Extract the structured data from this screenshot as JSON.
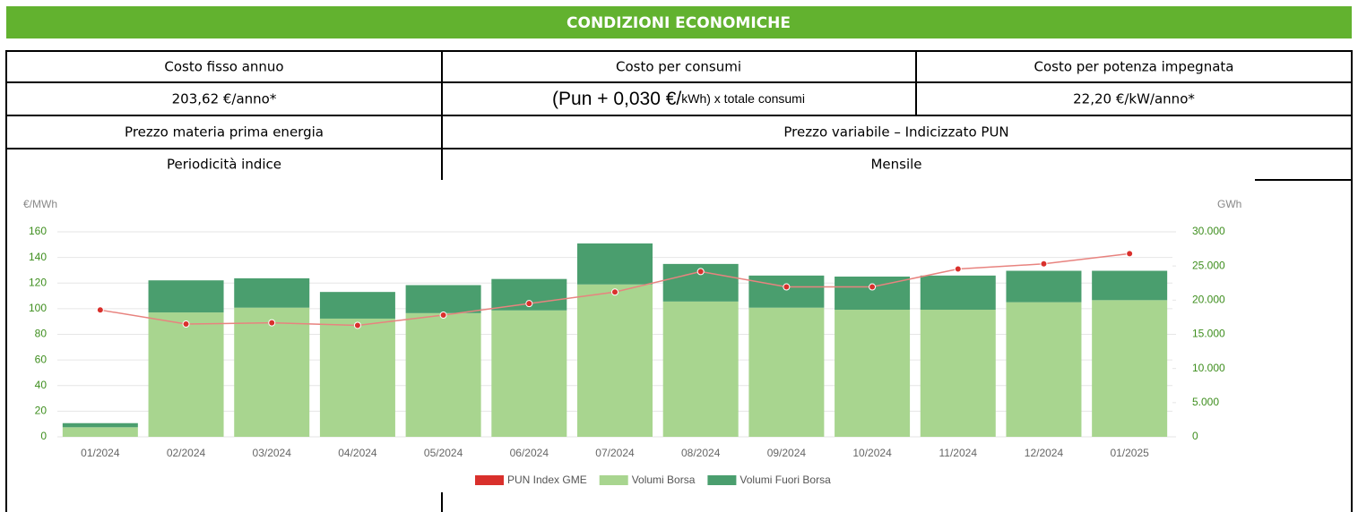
{
  "header": {
    "title": "CONDIZIONI ECONOMICHE"
  },
  "table": {
    "rows": [
      [
        "Costo fisso annuo",
        "Costo per consumi",
        "Costo per potenza impegnata"
      ],
      [
        "203,62 €/anno*",
        {
          "main": "(Pun + 0,030 €/",
          "small": "kWh) x totale consumi"
        },
        "22,20 €/kW/anno*"
      ],
      [
        "Prezzo materia prima energia",
        "Prezzo variabile – Indicizzato PUN"
      ],
      [
        "Periodicità indice",
        "Mensile"
      ]
    ]
  },
  "chart_data": {
    "type": "bar",
    "stacked": true,
    "ylabel": "€/MWh",
    "y2label": "GWh",
    "categories": [
      "01/2024",
      "02/2024",
      "03/2024",
      "04/2024",
      "05/2024",
      "06/2024",
      "07/2024",
      "08/2024",
      "09/2024",
      "10/2024",
      "11/2024",
      "12/2024",
      "01/2025"
    ],
    "series": [
      {
        "name": "PUN Index GME",
        "type": "line",
        "color": "#e8837f",
        "marker_color": "#d9302c",
        "values": [
          99,
          88,
          89,
          87,
          95,
          104,
          113,
          129,
          117,
          117,
          131,
          135,
          143
        ]
      },
      {
        "name": "Volumi Borsa",
        "type": "bar",
        "axis": "y2",
        "color": "#a8d58f",
        "values": [
          1400,
          18200,
          18900,
          17300,
          18100,
          18500,
          22300,
          19800,
          18900,
          18600,
          18600,
          19700,
          20000
        ]
      },
      {
        "name": "Volumi Fuori Borsa",
        "type": "bar",
        "axis": "y2",
        "color": "#4a9e6e",
        "values": [
          600,
          4700,
          4300,
          3900,
          4100,
          4600,
          6000,
          5500,
          4700,
          4850,
          5000,
          4600,
          4300
        ]
      }
    ],
    "ylim": [
      0,
      160
    ],
    "yticks": [
      0,
      20,
      40,
      60,
      80,
      100,
      120,
      140,
      160
    ],
    "y2lim": [
      0,
      30000
    ],
    "y2ticks": [
      0,
      {
        "value": 5000,
        "label": "5.000"
      },
      {
        "value": 10000,
        "label": "10.000"
      },
      {
        "value": 15000,
        "label": "15.000"
      },
      {
        "value": 20000,
        "label": "20.000"
      },
      {
        "value": 25000,
        "label": "25.000"
      },
      {
        "value": 30000,
        "label": "30.000"
      }
    ],
    "grid": true,
    "legend": "bottom",
    "tick_color": "#3e8e1e"
  }
}
